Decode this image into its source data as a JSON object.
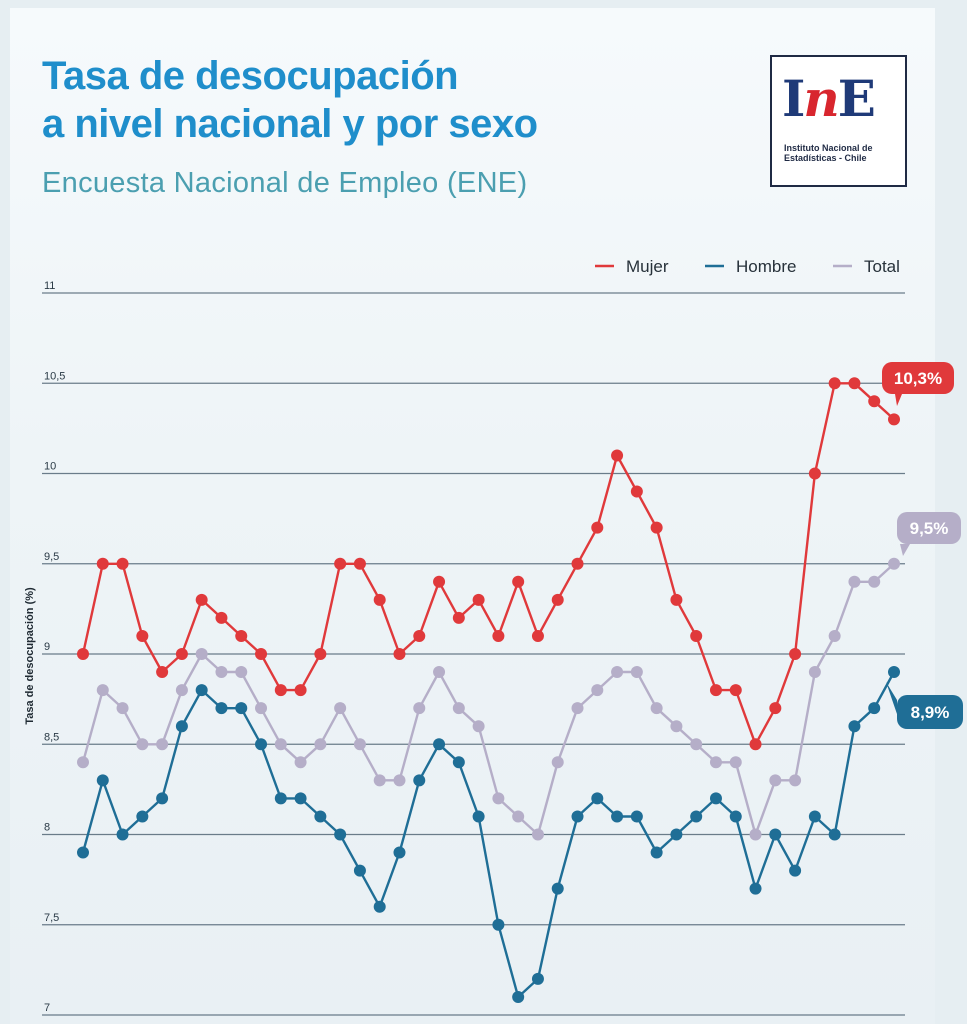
{
  "header": {
    "title_line1": "Tasa de desocupación",
    "title_line2": "a nivel nacional y por sexo",
    "subtitle": "Encuesta Nacional de Empleo (ENE)"
  },
  "logo": {
    "mark_i": "I",
    "mark_n": "n",
    "mark_e": "E",
    "text_line1": "Instituto Nacional de",
    "text_line2": "Estadísticas - Chile"
  },
  "chart_data": {
    "type": "line",
    "ylabel": "Tasa de desocupación (%)",
    "ylim": [
      7,
      11
    ],
    "yticks": [
      "7",
      "7,5",
      "8",
      "8,5",
      "9",
      "9,5",
      "10",
      "10,5",
      "11"
    ],
    "grid": true,
    "legend_position": "top-right",
    "series": [
      {
        "name": "Mujer",
        "color": "#e0393b",
        "end_label": "10,3%",
        "values": [
          9.0,
          9.5,
          9.5,
          9.1,
          8.9,
          9.0,
          9.3,
          9.2,
          9.1,
          9.0,
          8.8,
          8.8,
          9.0,
          9.5,
          9.5,
          9.3,
          9.0,
          9.1,
          9.4,
          9.2,
          9.3,
          9.1,
          9.4,
          9.1,
          9.3,
          9.5,
          9.7,
          10.1,
          9.9,
          9.7,
          9.3,
          9.1,
          8.8,
          8.8,
          8.5,
          8.7,
          9.0,
          10.0,
          10.5,
          10.5,
          10.4,
          10.3
        ]
      },
      {
        "name": "Hombre",
        "color": "#1f6e96",
        "end_label": "8,9%",
        "values": [
          7.9,
          8.3,
          8.0,
          8.1,
          8.2,
          8.6,
          8.8,
          8.7,
          8.7,
          8.5,
          8.2,
          8.2,
          8.1,
          8.0,
          7.8,
          7.6,
          7.9,
          8.3,
          8.5,
          8.4,
          8.1,
          7.5,
          7.1,
          7.2,
          7.7,
          8.1,
          8.2,
          8.1,
          8.1,
          7.9,
          8.0,
          8.1,
          8.2,
          8.1,
          7.7,
          8.0,
          7.8,
          8.1,
          8.0,
          8.6,
          8.7,
          8.9
        ]
      },
      {
        "name": "Total",
        "color": "#b5aec8",
        "end_label": "9,5%",
        "values": [
          8.4,
          8.8,
          8.7,
          8.5,
          8.5,
          8.8,
          9.0,
          8.9,
          8.9,
          8.7,
          8.5,
          8.4,
          8.5,
          8.7,
          8.5,
          8.3,
          8.3,
          8.7,
          8.9,
          8.7,
          8.6,
          8.2,
          8.1,
          8.0,
          8.4,
          8.7,
          8.8,
          8.9,
          8.9,
          8.7,
          8.6,
          8.5,
          8.4,
          8.4,
          8.0,
          8.3,
          8.3,
          8.9,
          9.1,
          9.4,
          9.4,
          9.5
        ]
      }
    ]
  }
}
